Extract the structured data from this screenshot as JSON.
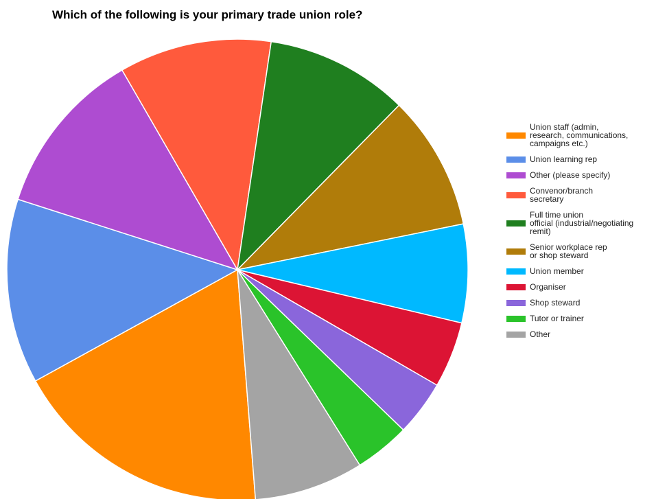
{
  "chart_data": {
    "type": "pie",
    "title": "Which of the following is your primary trade union role?",
    "legend_position": "right",
    "slices": [
      {
        "label": "Union staff (admin,\nresearch, communications,\ncampaigns etc.)",
        "value": 19.3,
        "color": "#FF8800"
      },
      {
        "label": "Union learning rep",
        "value": 13.7,
        "color": "#5B8EE8"
      },
      {
        "label": "Other (please specify)",
        "value": 12.4,
        "color": "#AE4CD1"
      },
      {
        "label": "Convenor/branch\nsecretary",
        "value": 11.3,
        "color": "#FF5A3C"
      },
      {
        "label": "Full time union\nofficial (industrial/negotiating\nremit)",
        "value": 10.6,
        "color": "#1F7F1F"
      },
      {
        "label": "Senior workplace rep\nor shop steward",
        "value": 10.0,
        "color": "#B07C0A"
      },
      {
        "label": "Union member",
        "value": 7.3,
        "color": "#00B9FF"
      },
      {
        "label": "Organiser",
        "value": 4.9,
        "color": "#DC1434"
      },
      {
        "label": "Shop steward",
        "value": 4.1,
        "color": "#8A66DB"
      },
      {
        "label": "Tutor or trainer",
        "value": 4.1,
        "color": "#2AC32A"
      },
      {
        "label": "Other",
        "value": 8.1,
        "color": "#A4A4A4"
      }
    ]
  }
}
